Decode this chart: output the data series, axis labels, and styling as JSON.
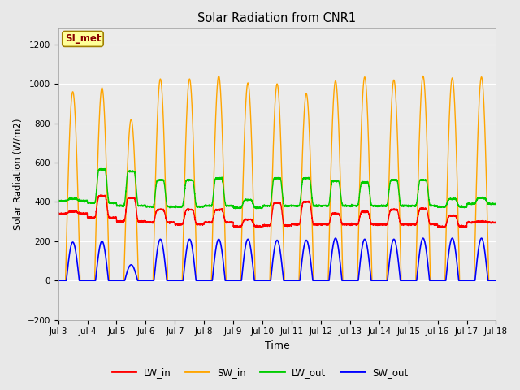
{
  "title": "Solar Radiation from CNR1",
  "xlabel": "Time",
  "ylabel": "Solar Radiation (W/m2)",
  "ylim": [
    -200,
    1280
  ],
  "yticks": [
    -200,
    0,
    200,
    400,
    600,
    800,
    1000,
    1200
  ],
  "x_tick_labels": [
    "Jul 3",
    "Jul 4",
    "Jul 5",
    "Jul 6",
    "Jul 7",
    "Jul 8",
    "Jul 9",
    "Jul 10",
    "Jul 11",
    "Jul 12",
    "Jul 13",
    "Jul 14",
    "Jul 15",
    "Jul 16",
    "Jul 17",
    "Jul 18"
  ],
  "annotation_text": "SI_met",
  "annotation_color": "#8B0000",
  "annotation_bg": "#FFFF99",
  "annotation_border": "#A08000",
  "legend_labels": [
    "LW_in",
    "SW_in",
    "LW_out",
    "SW_out"
  ],
  "legend_colors": [
    "#FF0000",
    "#FFA500",
    "#00CC00",
    "#0000FF"
  ],
  "line_colors": {
    "LW_in": "#FF0000",
    "SW_in": "#FFA500",
    "LW_out": "#00CC00",
    "SW_out": "#0000FF"
  },
  "background_color": "#E8E8E8",
  "plot_bg_color": "#EBEBEB",
  "grid_color": "#FFFFFF",
  "num_days": 15,
  "SW_in_peaks": [
    960,
    980,
    820,
    1025,
    1025,
    1040,
    1005,
    1000,
    950,
    1015,
    1035,
    1020,
    1040,
    1030,
    1035
  ],
  "SW_out_peaks": [
    195,
    200,
    80,
    210,
    210,
    210,
    210,
    205,
    205,
    215,
    210,
    210,
    215,
    215,
    215
  ],
  "LW_in_day": [
    350,
    430,
    420,
    360,
    360,
    360,
    310,
    395,
    400,
    340,
    350,
    360,
    365,
    330,
    300
  ],
  "LW_in_night": [
    340,
    320,
    300,
    295,
    285,
    295,
    275,
    280,
    285,
    285,
    285,
    285,
    285,
    275,
    295
  ],
  "LW_out_day": [
    415,
    565,
    555,
    510,
    510,
    520,
    410,
    520,
    520,
    505,
    500,
    510,
    510,
    415,
    420
  ],
  "LW_out_night": [
    405,
    395,
    380,
    375,
    375,
    380,
    370,
    380,
    380,
    380,
    380,
    380,
    380,
    375,
    390
  ]
}
